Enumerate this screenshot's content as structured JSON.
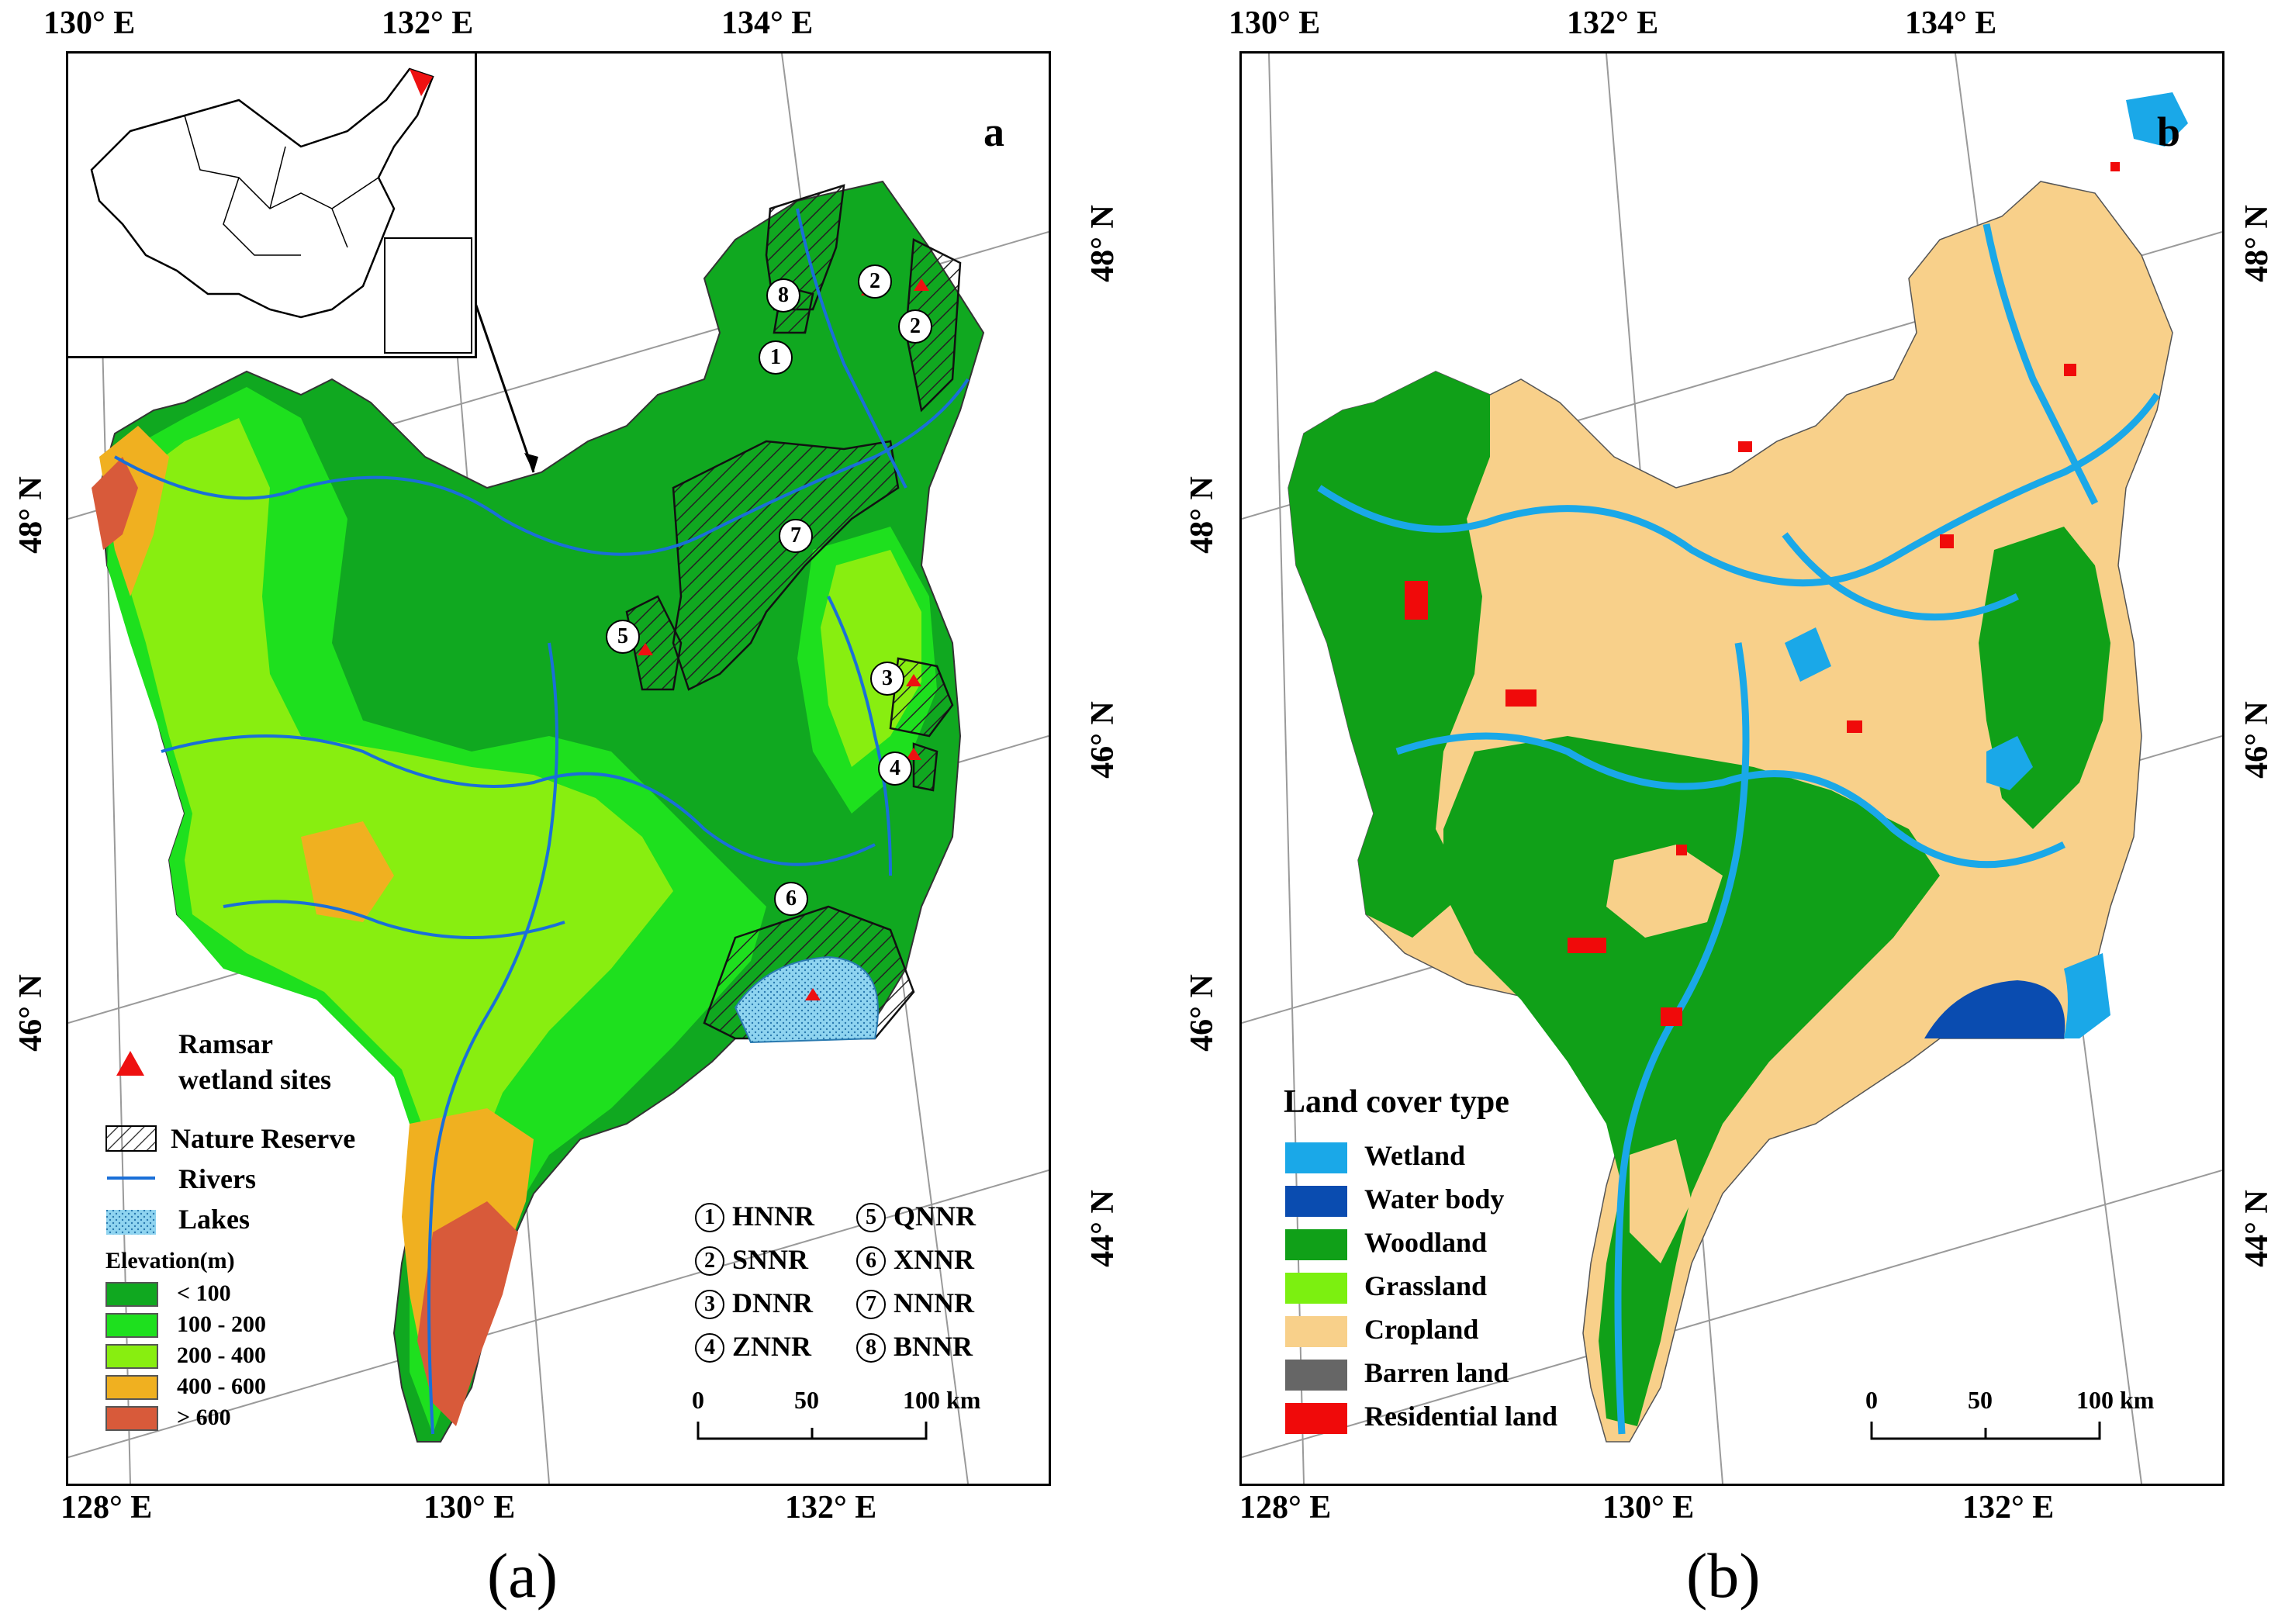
{
  "panel_a": {
    "letter": "a",
    "caption": "(a)",
    "top_lon_ticks": [
      "130° E",
      "132° E",
      "134° E"
    ],
    "bottom_lon_ticks": [
      "128° E",
      "130° E",
      "132° E"
    ],
    "left_lat_ticks": [
      "48° N",
      "46° N"
    ],
    "right_lat_ticks": [
      "48° N",
      "46° N",
      "44° N"
    ],
    "legend": {
      "ramsar": "Ramsar\nwetland sites",
      "ramsar_line1": "Ramsar",
      "ramsar_line2": "wetland sites",
      "nature_reserve": "Nature Reserve",
      "rivers": "Rivers",
      "lakes": "Lakes",
      "elevation_title": "Elevation(m)",
      "elevation_classes": [
        {
          "label": "< 100",
          "color": "#10a820"
        },
        {
          "label": "100 - 200",
          "color": "#1ee01e"
        },
        {
          "label": "200 - 400",
          "color": "#88ee10"
        },
        {
          "label": "400 - 600",
          "color": "#f0b020"
        },
        {
          "label": "> 600",
          "color": "#d85a3a"
        }
      ]
    },
    "reserves": [
      {
        "num": "1",
        "code": "HNNR"
      },
      {
        "num": "2",
        "code": "SNNR"
      },
      {
        "num": "3",
        "code": "DNNR"
      },
      {
        "num": "4",
        "code": "ZNNR"
      },
      {
        "num": "5",
        "code": "QNNR"
      },
      {
        "num": "6",
        "code": "XNNR"
      },
      {
        "num": "7",
        "code": "NNNR"
      },
      {
        "num": "8",
        "code": "BNNR"
      }
    ],
    "map_markers": [
      "8",
      "2",
      "2",
      "1",
      "7",
      "5",
      "3",
      "4",
      "6"
    ],
    "scale": {
      "ticks": [
        "0",
        "50",
        "100"
      ],
      "unit": "km"
    }
  },
  "panel_b": {
    "letter": "b",
    "caption": "(b)",
    "top_lon_ticks": [
      "130° E",
      "132° E",
      "134° E"
    ],
    "bottom_lon_ticks": [
      "128° E",
      "130° E",
      "132° E"
    ],
    "left_lat_ticks": [
      "48° N",
      "46° N"
    ],
    "right_lat_ticks": [
      "48° N",
      "46° N",
      "44° N"
    ],
    "legend_title": "Land cover type",
    "classes": [
      {
        "label": "Wetland",
        "color": "#1aa8e8"
      },
      {
        "label": "Water body",
        "color": "#0a4cb0"
      },
      {
        "label": "Woodland",
        "color": "#10a018"
      },
      {
        "label": "Grassland",
        "color": "#7cf010"
      },
      {
        "label": "Cropland",
        "color": "#f8d08a"
      },
      {
        "label": "Barren land",
        "color": "#666666"
      },
      {
        "label": "Residential land",
        "color": "#f00a0a"
      }
    ],
    "scale": {
      "ticks": [
        "0",
        "50",
        "100"
      ],
      "unit": "km"
    }
  },
  "colors": {
    "ramsar": "#ee1111",
    "river": "#1a6fd8",
    "lake": "#8fd4f0",
    "graticule": "#9a9a9a"
  }
}
